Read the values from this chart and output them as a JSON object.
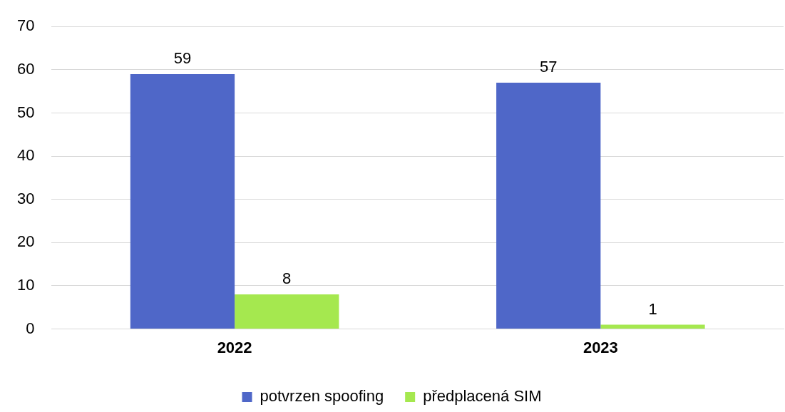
{
  "chart_data": {
    "type": "bar",
    "categories": [
      "2022",
      "2023"
    ],
    "series": [
      {
        "name": "potvrzen spoofing",
        "color": "#4f67c8",
        "values": [
          59,
          57
        ]
      },
      {
        "name": "předplacená SIM",
        "color": "#a5e84f",
        "values": [
          8,
          1
        ]
      }
    ],
    "ylim": [
      0,
      70
    ],
    "yticks": [
      0,
      10,
      20,
      30,
      40,
      50,
      60,
      70
    ],
    "grid": "y",
    "legend": "bottom",
    "data_labels": true
  }
}
